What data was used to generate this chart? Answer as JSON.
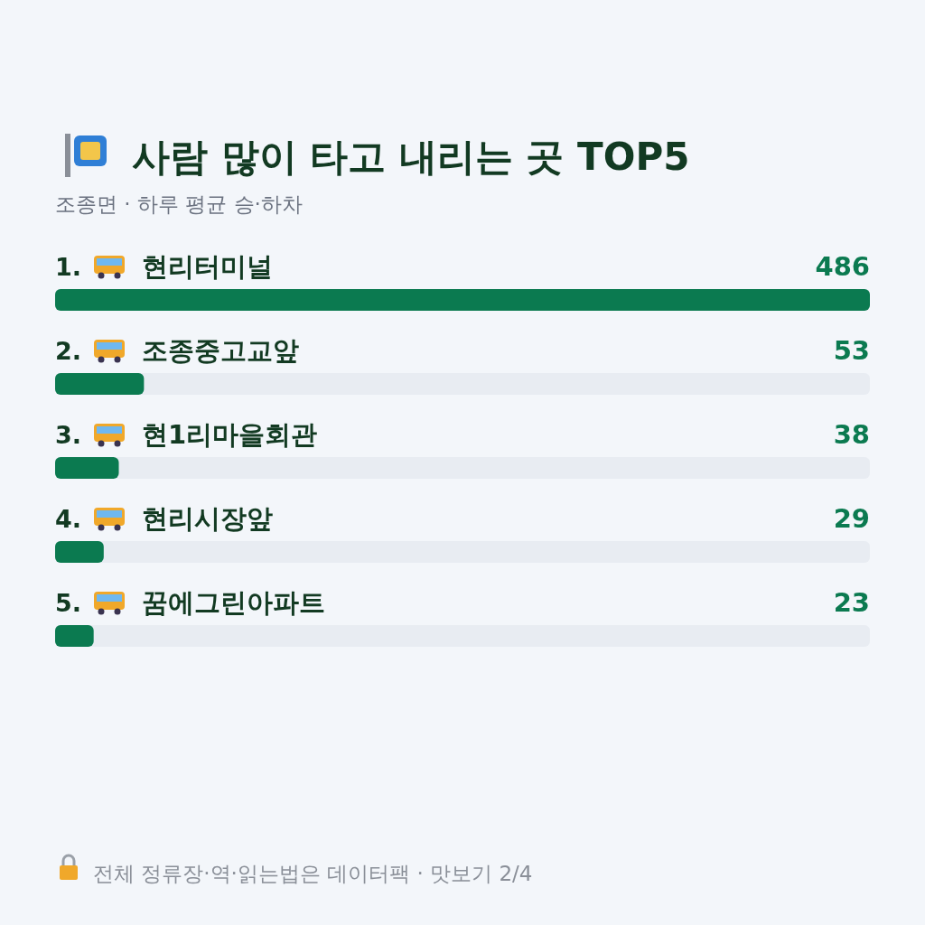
{
  "chart_data": {
    "type": "bar",
    "orientation": "horizontal",
    "title": "사람 많이 타고 내리는 곳 TOP5",
    "subtitle": "조종면 · 하루 평균 승·하차",
    "categories": [
      "1. 현리터미널",
      "2. 조종중고교앞",
      "3. 현1리마을회관",
      "4. 현리시장앞",
      "5. 꿈에그린아파트"
    ],
    "values": [
      486,
      53,
      38,
      29,
      23
    ],
    "color": "#0b7a50",
    "data_labels": true,
    "annotations": [
      "전체 정류장·역·읽는법은 데이터팩 · 맛보기 2/4"
    ]
  }
}
